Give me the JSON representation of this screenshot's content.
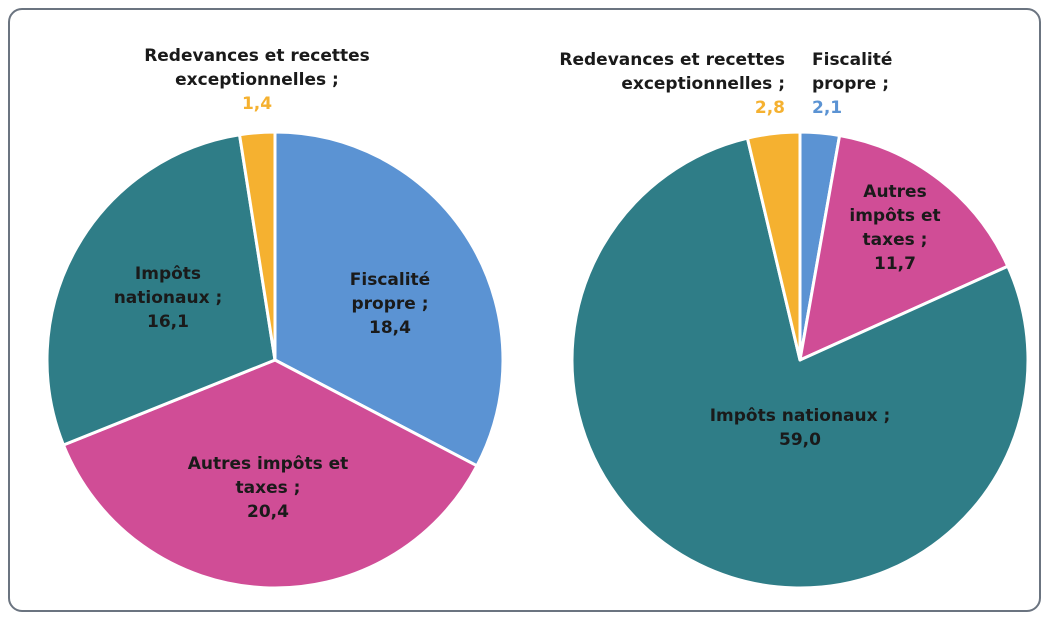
{
  "chart_data": [
    {
      "type": "pie",
      "categories": [
        "Fiscalité propre ;",
        "Autres impôts et taxes ;",
        "Impôts nationaux ;",
        "Redevances et recettes exceptionnelles ;"
      ],
      "values": [
        18.4,
        20.4,
        16.1,
        1.4
      ],
      "value_labels": [
        "18,4",
        "20,4",
        "16,1",
        "1,4"
      ],
      "colors": [
        "#5b93d3",
        "#d04d96",
        "#2f7d87",
        "#f5b130"
      ]
    },
    {
      "type": "pie",
      "categories": [
        "Fiscalité propre ;",
        "Autres impôts et taxes ;",
        "Impôts nationaux ;",
        "Redevances et recettes exceptionnelles ;"
      ],
      "values": [
        2.1,
        11.7,
        59.0,
        2.8
      ],
      "value_labels": [
        "2,1",
        "11,7",
        "59,0",
        "2,8"
      ],
      "colors": [
        "#5b93d3",
        "#d04d96",
        "#2f7d87",
        "#f5b130"
      ]
    }
  ]
}
